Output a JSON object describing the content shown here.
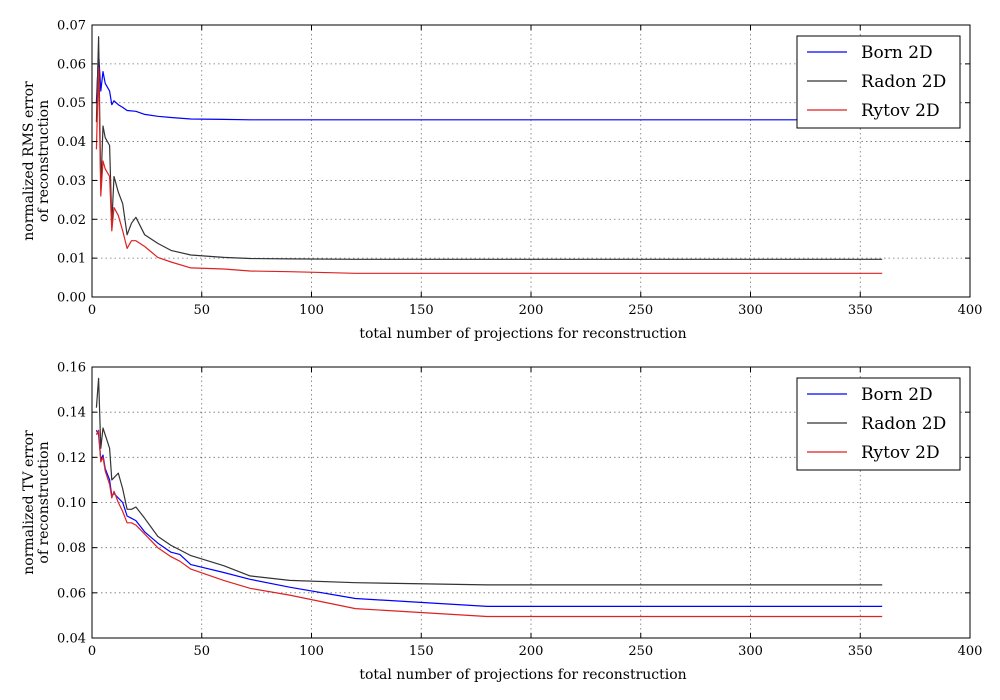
{
  "chart_data": [
    {
      "type": "line",
      "title": "",
      "xlabel": "total number of projections for reconstruction",
      "ylabel": [
        "normalized RMS error",
        "of reconstruction"
      ],
      "xlim": [
        0,
        400
      ],
      "ylim": [
        0,
        0.07
      ],
      "xticks": [
        0,
        50,
        100,
        150,
        200,
        250,
        300,
        350,
        400
      ],
      "xtick_labels": [
        "0",
        "50",
        "100",
        "150",
        "200",
        "250",
        "300",
        "350",
        "400"
      ],
      "yticks": [
        0,
        0.01,
        0.02,
        0.03,
        0.04,
        0.05,
        0.06,
        0.07
      ],
      "ytick_labels": [
        "0.00",
        "0.01",
        "0.02",
        "0.03",
        "0.04",
        "0.05",
        "0.06",
        "0.07"
      ],
      "grid": true,
      "legend_position": "top-right",
      "series": [
        {
          "name": "Born 2D",
          "color": "#0000ff",
          "x": [
            2,
            3,
            4,
            5,
            6,
            8,
            9,
            10,
            11,
            12,
            14,
            16,
            20,
            24,
            30,
            36,
            45,
            60,
            72,
            90,
            120,
            180,
            360
          ],
          "y": [
            0.05,
            0.063,
            0.053,
            0.058,
            0.055,
            0.053,
            0.0495,
            0.0505,
            0.05,
            0.0495,
            0.0488,
            0.048,
            0.0478,
            0.047,
            0.0465,
            0.0462,
            0.0458,
            0.0457,
            0.0456,
            0.0456,
            0.0456,
            0.0456,
            0.0456
          ]
        },
        {
          "name": "Radon 2D",
          "color": "#333333",
          "x": [
            2,
            3,
            4,
            5,
            6,
            8,
            9,
            10,
            12,
            14,
            16,
            18,
            20,
            24,
            30,
            36,
            45,
            60,
            72,
            90,
            120,
            180,
            360
          ],
          "y": [
            0.045,
            0.067,
            0.028,
            0.044,
            0.041,
            0.039,
            0.019,
            0.031,
            0.027,
            0.024,
            0.016,
            0.019,
            0.0205,
            0.016,
            0.0138,
            0.012,
            0.0108,
            0.0102,
            0.0099,
            0.0098,
            0.0097,
            0.0097,
            0.0097
          ]
        },
        {
          "name": "Rytov 2D",
          "color": "#dd2222",
          "x": [
            2,
            3,
            4,
            5,
            6,
            8,
            9,
            10,
            12,
            14,
            16,
            18,
            20,
            24,
            30,
            36,
            45,
            60,
            72,
            90,
            120,
            180,
            360
          ],
          "y": [
            0.038,
            0.059,
            0.026,
            0.035,
            0.033,
            0.031,
            0.017,
            0.023,
            0.021,
            0.017,
            0.0125,
            0.0145,
            0.0145,
            0.013,
            0.0102,
            0.009,
            0.0075,
            0.0072,
            0.0067,
            0.0065,
            0.0061,
            0.0061,
            0.0061
          ]
        }
      ]
    },
    {
      "type": "line",
      "title": "",
      "xlabel": "total number of projections for reconstruction",
      "ylabel": [
        "normalized TV error",
        "of reconstruction"
      ],
      "xlim": [
        0,
        400
      ],
      "ylim": [
        0.04,
        0.16
      ],
      "xticks": [
        0,
        50,
        100,
        150,
        200,
        250,
        300,
        350,
        400
      ],
      "xtick_labels": [
        "0",
        "50",
        "100",
        "150",
        "200",
        "250",
        "300",
        "350",
        "400"
      ],
      "yticks": [
        0.04,
        0.06,
        0.08,
        0.1,
        0.12,
        0.14,
        0.16
      ],
      "ytick_labels": [
        "0.04",
        "0.06",
        "0.08",
        "0.10",
        "0.12",
        "0.14",
        "0.16"
      ],
      "grid": true,
      "legend_position": "top-right",
      "series": [
        {
          "name": "Born 2D",
          "color": "#0000ff",
          "x": [
            2,
            3,
            4,
            5,
            6,
            8,
            9,
            10,
            12,
            14,
            16,
            18,
            20,
            24,
            30,
            36,
            40,
            45,
            60,
            72,
            90,
            120,
            180,
            360
          ],
          "y": [
            0.132,
            0.13,
            0.119,
            0.121,
            0.115,
            0.11,
            0.103,
            0.104,
            0.102,
            0.1,
            0.094,
            0.093,
            0.092,
            0.087,
            0.082,
            0.078,
            0.077,
            0.0725,
            0.069,
            0.066,
            0.0625,
            0.0575,
            0.054,
            0.054
          ]
        },
        {
          "name": "Radon 2D",
          "color": "#333333",
          "x": [
            2,
            3,
            4,
            5,
            6,
            8,
            9,
            10,
            12,
            14,
            16,
            18,
            20,
            24,
            30,
            36,
            40,
            45,
            60,
            72,
            90,
            120,
            180,
            360
          ],
          "y": [
            0.142,
            0.155,
            0.124,
            0.133,
            0.13,
            0.124,
            0.11,
            0.111,
            0.113,
            0.106,
            0.097,
            0.097,
            0.098,
            0.093,
            0.085,
            0.081,
            0.079,
            0.0765,
            0.072,
            0.0675,
            0.0655,
            0.0645,
            0.0635,
            0.0635
          ]
        },
        {
          "name": "Rytov 2D",
          "color": "#dd2222",
          "x": [
            2,
            3,
            4,
            5,
            6,
            8,
            9,
            10,
            12,
            14,
            16,
            18,
            20,
            24,
            30,
            36,
            40,
            45,
            60,
            72,
            90,
            120,
            180,
            360
          ],
          "y": [
            0.13,
            0.132,
            0.118,
            0.12,
            0.114,
            0.108,
            0.102,
            0.105,
            0.1,
            0.096,
            0.091,
            0.091,
            0.09,
            0.086,
            0.08,
            0.076,
            0.074,
            0.0705,
            0.0655,
            0.062,
            0.059,
            0.053,
            0.0495,
            0.0495
          ]
        }
      ]
    }
  ]
}
